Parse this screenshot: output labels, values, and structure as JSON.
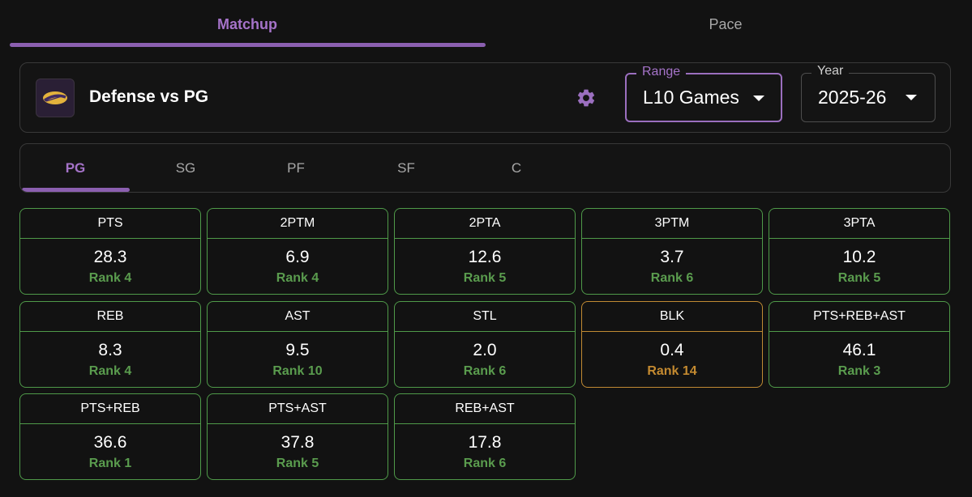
{
  "tabs": [
    {
      "label": "Matchup",
      "active": true
    },
    {
      "label": "Pace",
      "active": false
    }
  ],
  "header": {
    "team_logo": "lakers-logo",
    "title": "Defense vs PG",
    "settings_icon": "gear-icon"
  },
  "range_select": {
    "label": "Range",
    "value": "L10 Games"
  },
  "year_select": {
    "label": "Year",
    "value": "2025-26"
  },
  "positions": [
    {
      "label": "PG",
      "active": true
    },
    {
      "label": "SG",
      "active": false
    },
    {
      "label": "PF",
      "active": false
    },
    {
      "label": "SF",
      "active": false
    },
    {
      "label": "C",
      "active": false
    }
  ],
  "stats": [
    {
      "stat": "PTS",
      "value": "28.3",
      "rank": "Rank 4",
      "status": "good"
    },
    {
      "stat": "2PTM",
      "value": "6.9",
      "rank": "Rank 4",
      "status": "good"
    },
    {
      "stat": "2PTA",
      "value": "12.6",
      "rank": "Rank 5",
      "status": "good"
    },
    {
      "stat": "3PTM",
      "value": "3.7",
      "rank": "Rank 6",
      "status": "good"
    },
    {
      "stat": "3PTA",
      "value": "10.2",
      "rank": "Rank 5",
      "status": "good"
    },
    {
      "stat": "REB",
      "value": "8.3",
      "rank": "Rank 4",
      "status": "good"
    },
    {
      "stat": "AST",
      "value": "9.5",
      "rank": "Rank 10",
      "status": "good"
    },
    {
      "stat": "STL",
      "value": "2.0",
      "rank": "Rank 6",
      "status": "good"
    },
    {
      "stat": "BLK",
      "value": "0.4",
      "rank": "Rank 14",
      "status": "warn"
    },
    {
      "stat": "PTS+REB+AST",
      "value": "46.1",
      "rank": "Rank 3",
      "status": "good"
    },
    {
      "stat": "PTS+REB",
      "value": "36.6",
      "rank": "Rank 1",
      "status": "good"
    },
    {
      "stat": "PTS+AST",
      "value": "37.8",
      "rank": "Rank 5",
      "status": "good"
    },
    {
      "stat": "REB+AST",
      "value": "17.8",
      "rank": "Rank 6",
      "status": "good"
    }
  ],
  "colors": {
    "accent": "#a573c9",
    "good": "#5a9c4e",
    "warn": "#c48a30",
    "background": "#121212"
  }
}
